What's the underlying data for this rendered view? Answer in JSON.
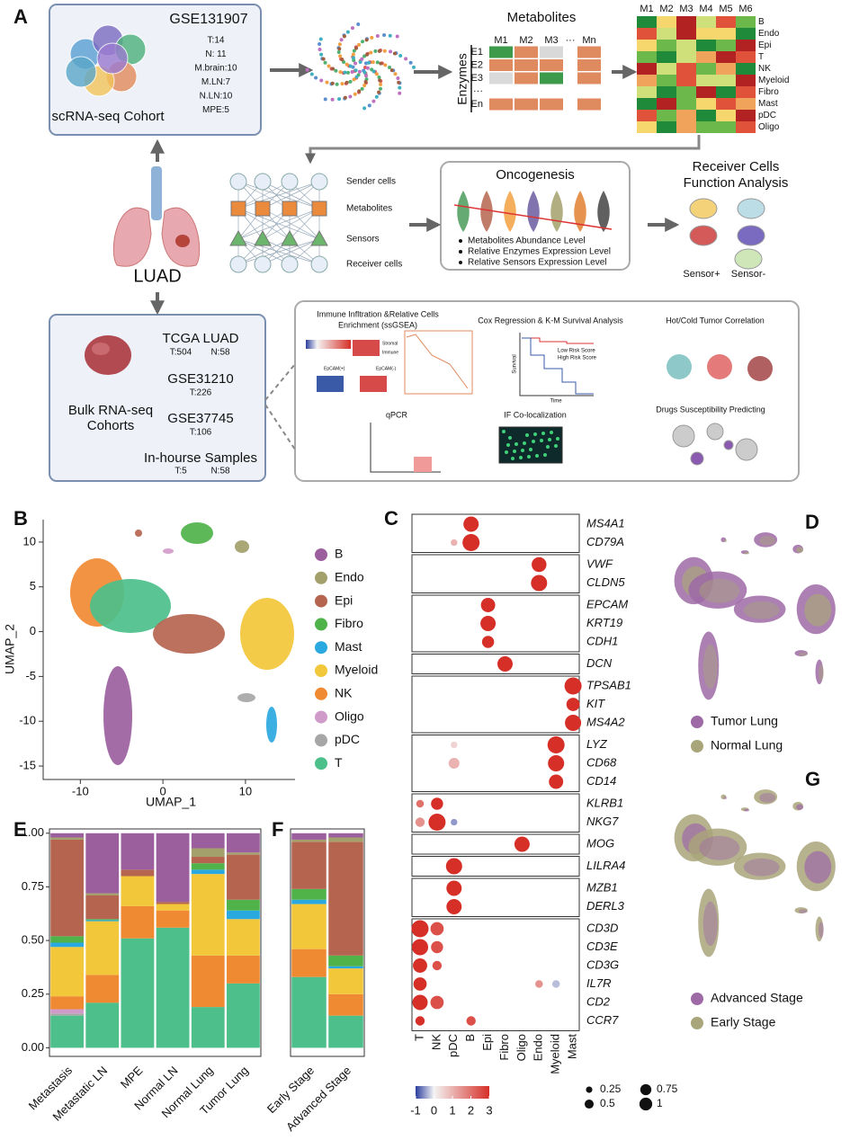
{
  "panel_labels": [
    "A",
    "B",
    "C",
    "D",
    "E",
    "F",
    "G"
  ],
  "panel_a": {
    "sc_cohort": {
      "title": "GSE131907",
      "label": "scRNA-seq Cohort",
      "stats": [
        {
          "text": "T:14",
          "color": "#c0392b"
        },
        {
          "text": "N: 11",
          "color": "#3a9a3a"
        },
        {
          "text": "M.brain:10",
          "color": "#c0392b"
        },
        {
          "text": "M.LN:7",
          "color": "#c0392b"
        },
        {
          "text": "N.LN:10",
          "color": "#3a9a3a"
        },
        {
          "text": "MPE:5",
          "color": "#111111"
        }
      ]
    },
    "matrix": {
      "title": "Metabolites",
      "columns": [
        "M1",
        "M2",
        "M3",
        "···",
        "Mn"
      ],
      "axis": "Enzymes",
      "rows": [
        "E1",
        "E2",
        "E3",
        "···",
        "En"
      ]
    },
    "heatmap": {
      "columns": [
        "M1",
        "M2",
        "M3",
        "M4",
        "M5",
        "M6"
      ],
      "rows": [
        "B",
        "Endo",
        "Epi",
        "T",
        "NK",
        "Myeloid",
        "Fibro",
        "Mast",
        "pDC",
        "Oligo"
      ]
    },
    "network": {
      "labels": [
        "Sender cells",
        "Metabolites",
        "Sensors",
        "Receiver cells"
      ]
    },
    "oncogenesis": {
      "title": "Oncogenesis",
      "bullets": [
        "Metabolites Abundance Level",
        "Relative Enzymes Expression Level",
        "Relative Sensors Expression Level"
      ]
    },
    "receiver": {
      "title": [
        "Receiver Cells",
        "Function Analysis"
      ],
      "labels": [
        "Sensor+",
        "Sensor-"
      ]
    },
    "center": "LUAD",
    "bulk": {
      "label": [
        "Bulk RNA-seq",
        "Cohorts"
      ],
      "cohorts": [
        {
          "name": "TCGA LUAD",
          "stats": [
            {
              "text": "T:504",
              "color": "#c0392b"
            },
            {
              "text": "N:58",
              "color": "#3a9a3a"
            }
          ]
        },
        {
          "name": "GSE31210",
          "stats": [
            {
              "text": "T:226",
              "color": "#c0392b"
            }
          ]
        },
        {
          "name": "GSE37745",
          "stats": [
            {
              "text": "T:106",
              "color": "#c0392b"
            }
          ]
        },
        {
          "name": "In-hourse Samples",
          "stats": [
            {
              "text": "T:5",
              "color": "#c0392b"
            },
            {
              "text": "N:58",
              "color": "#3a9a3a"
            }
          ]
        }
      ]
    },
    "analyses": {
      "immune": [
        "Immune Infltration &Relative Cells",
        "Enrichment (ssGSEA)"
      ],
      "small": [
        "Stromal",
        "Immune",
        "EpCAM(+)",
        "EpCAM(-)"
      ],
      "cox": "Cox Regression & K-M Survival Analysis",
      "low": "Low Risk Score",
      "high": "High Risk Score",
      "survival": "Survival",
      "time": "Time",
      "hot_cold": "Hot/Cold Tumor Correlation",
      "qpcr": "qPCR",
      "if": "IF Co-localization",
      "drugs": "Drugs Susceptibility Predicting"
    }
  },
  "chart_data": [
    {
      "type": "scatter",
      "x_label": "UMAP_1",
      "y_label": "UMAP_2",
      "xlim": [
        -14.5,
        16
      ],
      "ylim": [
        -16.5,
        12.5
      ],
      "xticks": [
        -10,
        0,
        10
      ],
      "yticks": [
        -15,
        -10,
        -5,
        0,
        5,
        10
      ],
      "legend": [
        {
          "name": "B",
          "color": "#9b5f9e"
        },
        {
          "name": "Endo",
          "color": "#a3a06b"
        },
        {
          "name": "Epi",
          "color": "#b5654f"
        },
        {
          "name": "Fibro",
          "color": "#4fb34a"
        },
        {
          "name": "Mast",
          "color": "#2aa8e0"
        },
        {
          "name": "Myeloid",
          "color": "#f2c73a"
        },
        {
          "name": "NK",
          "color": "#f08a32"
        },
        {
          "name": "Oligo",
          "color": "#d19bc9"
        },
        {
          "name": "pDC",
          "color": "#a6a6a6"
        },
        {
          "name": "T",
          "color": "#4cbf8b"
        }
      ]
    },
    {
      "type": "dotplot",
      "genes": [
        "MS4A1",
        "CD79A",
        "VWF",
        "CLDN5",
        "EPCAM",
        "KRT19",
        "CDH1",
        "DCN",
        "TPSAB1",
        "KIT",
        "MS4A2",
        "LYZ",
        "CD68",
        "CD14",
        "KLRB1",
        "NKG7",
        "MOG",
        "LILRA4",
        "MZB1",
        "DERL3",
        "CD3D",
        "CD3E",
        "CD3G",
        "IL7R",
        "CD2",
        "CCR7"
      ],
      "groups": [
        2,
        2,
        3,
        1,
        3,
        3,
        2,
        1,
        1,
        2,
        6
      ],
      "categories": [
        "T",
        "NK",
        "pDC",
        "B",
        "Epi",
        "Fibro",
        "Oligo",
        "Endo",
        "Myeloid",
        "Mast"
      ],
      "dots": [
        {
          "gene": 0,
          "category": 3,
          "size": 0.8,
          "value": 3
        },
        {
          "gene": 1,
          "category": 3,
          "size": 1,
          "value": 3
        },
        {
          "gene": 1,
          "category": 2,
          "size": 0.15,
          "value": 1
        },
        {
          "gene": 2,
          "category": 7,
          "size": 0.75,
          "value": 3
        },
        {
          "gene": 3,
          "category": 7,
          "size": 0.9,
          "value": 3
        },
        {
          "gene": 4,
          "category": 4,
          "size": 0.7,
          "value": 3
        },
        {
          "gene": 5,
          "category": 4,
          "size": 0.8,
          "value": 3
        },
        {
          "gene": 6,
          "category": 4,
          "size": 0.5,
          "value": 3
        },
        {
          "gene": 7,
          "category": 5,
          "size": 0.8,
          "value": 3
        },
        {
          "gene": 8,
          "category": 9,
          "size": 1,
          "value": 3
        },
        {
          "gene": 9,
          "category": 9,
          "size": 0.6,
          "value": 3
        },
        {
          "gene": 10,
          "category": 9,
          "size": 0.9,
          "value": 3
        },
        {
          "gene": 11,
          "category": 8,
          "size": 1,
          "value": 3
        },
        {
          "gene": 11,
          "category": 2,
          "size": 0.15,
          "value": 0.5
        },
        {
          "gene": 12,
          "category": 8,
          "size": 0.9,
          "value": 3
        },
        {
          "gene": 12,
          "category": 2,
          "size": 0.4,
          "value": 1
        },
        {
          "gene": 13,
          "category": 8,
          "size": 0.7,
          "value": 3
        },
        {
          "gene": 14,
          "category": 1,
          "size": 0.5,
          "value": 3
        },
        {
          "gene": 14,
          "category": 0,
          "size": 0.2,
          "value": 2
        },
        {
          "gene": 15,
          "category": 1,
          "size": 1,
          "value": 3
        },
        {
          "gene": 15,
          "category": 0,
          "size": 0.3,
          "value": 1.5
        },
        {
          "gene": 15,
          "category": 2,
          "size": 0.15,
          "value": -0.5
        },
        {
          "gene": 16,
          "category": 6,
          "size": 0.8,
          "value": 3
        },
        {
          "gene": 17,
          "category": 2,
          "size": 0.9,
          "value": 3
        },
        {
          "gene": 18,
          "category": 2,
          "size": 0.8,
          "value": 3
        },
        {
          "gene": 19,
          "category": 2,
          "size": 0.8,
          "value": 3
        },
        {
          "gene": 20,
          "category": 0,
          "size": 1,
          "value": 3
        },
        {
          "gene": 20,
          "category": 1,
          "size": 0.6,
          "value": 2.5
        },
        {
          "gene": 21,
          "category": 0,
          "size": 0.9,
          "value": 3
        },
        {
          "gene": 21,
          "category": 1,
          "size": 0.5,
          "value": 2.5
        },
        {
          "gene": 22,
          "category": 0,
          "size": 0.7,
          "value": 3
        },
        {
          "gene": 22,
          "category": 1,
          "size": 0.3,
          "value": 2.5
        },
        {
          "gene": 23,
          "category": 0,
          "size": 0.6,
          "value": 3
        },
        {
          "gene": 23,
          "category": 7,
          "size": 0.2,
          "value": 1.5
        },
        {
          "gene": 23,
          "category": 8,
          "size": 0.2,
          "value": -0.3
        },
        {
          "gene": 24,
          "category": 0,
          "size": 0.8,
          "value": 3
        },
        {
          "gene": 24,
          "category": 1,
          "size": 0.6,
          "value": 2.5
        },
        {
          "gene": 25,
          "category": 0,
          "size": 0.3,
          "value": 3
        },
        {
          "gene": 25,
          "category": 3,
          "size": 0.3,
          "value": 2.5
        }
      ],
      "colorbar": {
        "lim": [
          -1,
          3
        ],
        "ticks": [
          -1,
          0,
          1,
          2,
          3
        ]
      },
      "size_legend": [
        0.25,
        0.5,
        0.75,
        1
      ]
    },
    {
      "type": "scatter",
      "legend": [
        {
          "name": "Tumor Lung",
          "color": "#9e6aa6"
        },
        {
          "name": "Normal Lung",
          "color": "#a9a57a"
        }
      ]
    },
    {
      "type": "scatter",
      "legend": [
        {
          "name": "Advanced Stage",
          "color": "#9e6aa6"
        },
        {
          "name": "Early Stage",
          "color": "#a9a57a"
        }
      ]
    },
    {
      "type": "stacked_bar",
      "categories": [
        "Metastasis",
        "Metastatic LN",
        "MPE",
        "Normal LN",
        "Normal Lung",
        "Tumor Lung"
      ],
      "ylim": [
        -0.04,
        1.02
      ],
      "yticks": [
        {
          "value": 0,
          "label": "0.00"
        },
        {
          "value": 0.25,
          "label": "0.25"
        },
        {
          "value": 0.5,
          "label": "0.50"
        },
        {
          "value": 0.75,
          "label": "0.75"
        },
        {
          "value": 1,
          "label": "1.00"
        }
      ],
      "series": [
        {
          "values": [
            0.02,
            0.28,
            0.17,
            0.32,
            0.07,
            0.09
          ]
        },
        {
          "values": [
            0.01,
            0.01,
            0,
            0,
            0.04,
            0.01
          ]
        },
        {
          "values": [
            0.45,
            0.11,
            0.03,
            0.01,
            0.03,
            0.21
          ]
        },
        {
          "values": [
            0.03,
            0.005,
            0,
            0,
            0.03,
            0.05
          ]
        },
        {
          "values": [
            0.02,
            0.005,
            0,
            0,
            0.02,
            0.04
          ]
        },
        {
          "values": [
            0.23,
            0.25,
            0.14,
            0.03,
            0.38,
            0.17
          ]
        },
        {
          "values": [
            0.06,
            0.13,
            0.15,
            0.08,
            0.24,
            0.13
          ]
        },
        {
          "values": [
            0.02,
            0,
            0,
            0,
            0,
            0
          ]
        },
        {
          "values": [
            0.01,
            0,
            0,
            0,
            0,
            0
          ]
        },
        {
          "values": [
            0.15,
            0.21,
            0.51,
            0.56,
            0.19,
            0.3
          ]
        }
      ]
    },
    {
      "type": "stacked_bar",
      "categories": [
        "Early Stage",
        "Advanced Stage"
      ],
      "ylim": [
        -0.04,
        1.02
      ],
      "series": [
        {
          "values": [
            0.03,
            0.02
          ]
        },
        {
          "values": [
            0.01,
            0.02
          ]
        },
        {
          "values": [
            0.22,
            0.53
          ]
        },
        {
          "values": [
            0.05,
            0.05
          ]
        },
        {
          "values": [
            0.02,
            0.01
          ]
        },
        {
          "values": [
            0.21,
            0.12
          ]
        },
        {
          "values": [
            0.13,
            0.1
          ]
        },
        {
          "values": [
            0,
            0
          ]
        },
        {
          "values": [
            0,
            0
          ]
        },
        {
          "values": [
            0.33,
            0.15
          ]
        }
      ]
    }
  ]
}
